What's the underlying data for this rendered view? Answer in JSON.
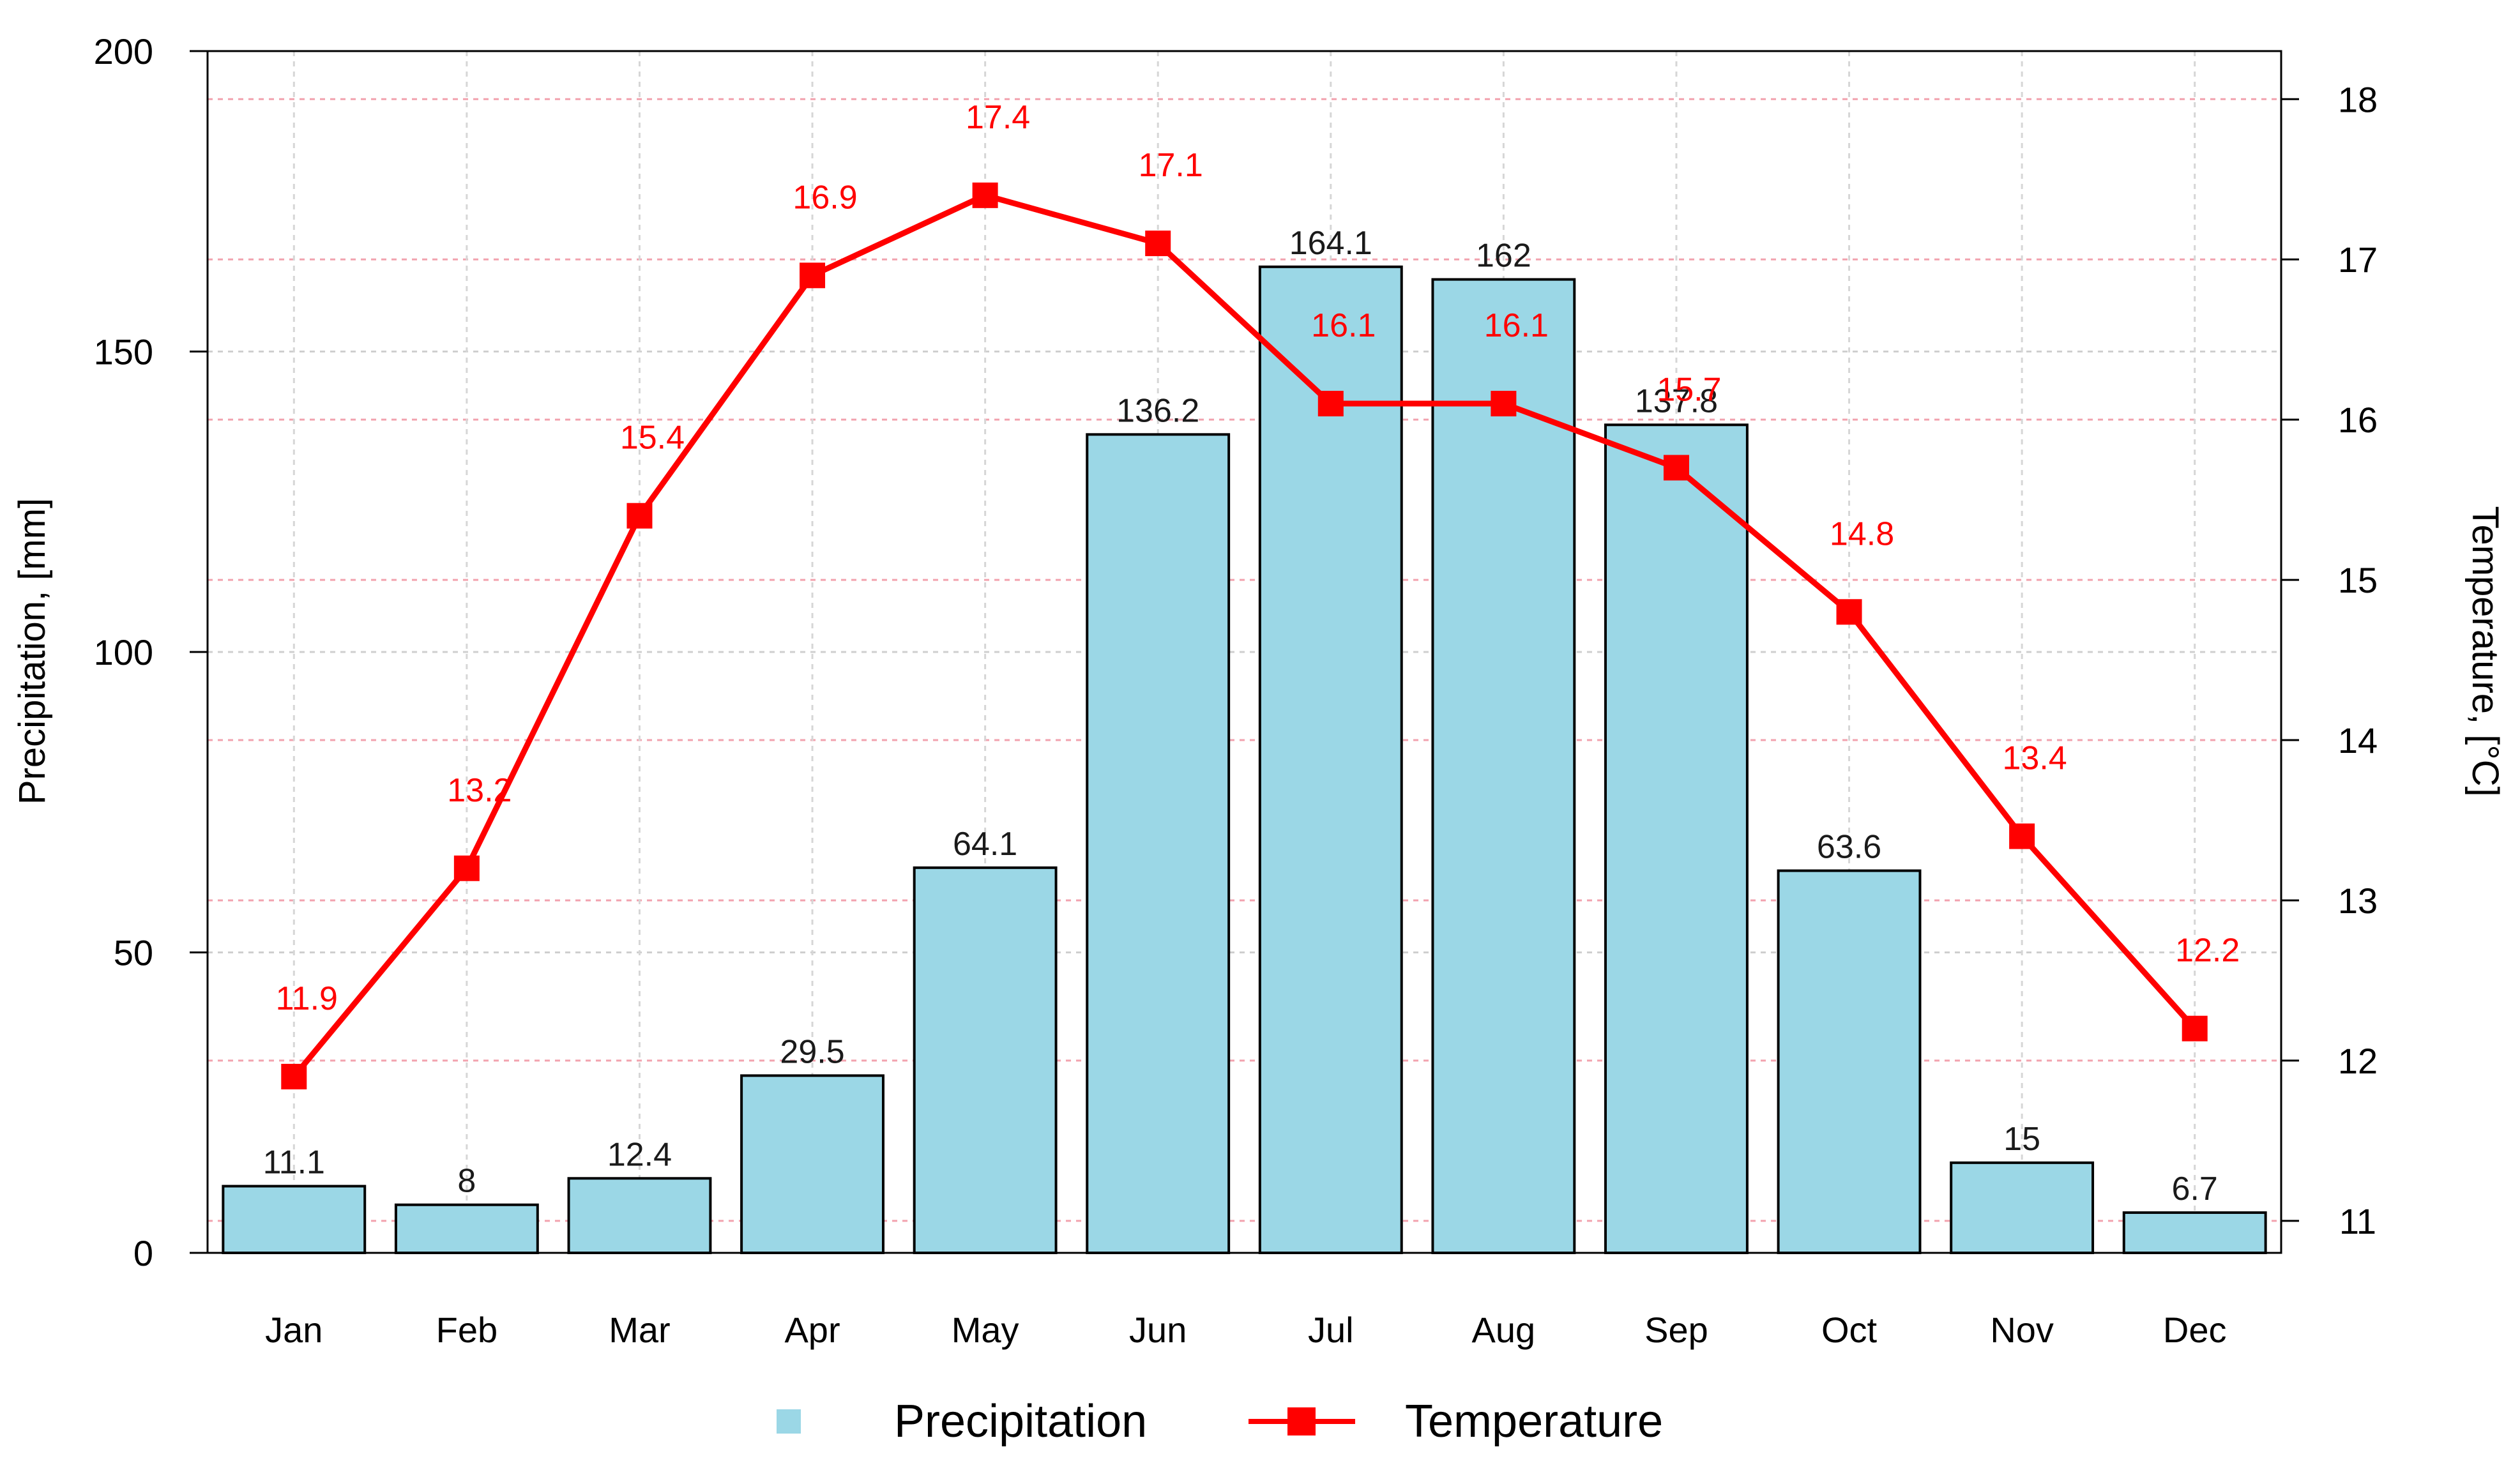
{
  "chart_data": {
    "type": "bar+line",
    "categories": [
      "Jan",
      "Feb",
      "Mar",
      "Apr",
      "May",
      "Jun",
      "Jul",
      "Aug",
      "Sep",
      "Oct",
      "Nov",
      "Dec"
    ],
    "series": [
      {
        "name": "Precipitation",
        "type": "bar",
        "axis": "left",
        "values": [
          11.1,
          8,
          12.4,
          29.5,
          64.1,
          136.2,
          164.1,
          162,
          137.8,
          63.6,
          15,
          6.7
        ],
        "labels": [
          "11.1",
          "8",
          "12.4",
          "29.5",
          "64.1",
          "136.2",
          "164.1",
          "162",
          "137.8",
          "63.6",
          "15",
          "6.7"
        ],
        "color": "#9bd7e6"
      },
      {
        "name": "Temperature",
        "type": "line",
        "axis": "right",
        "values": [
          11.9,
          13.2,
          15.4,
          16.9,
          17.4,
          17.1,
          16.1,
          16.1,
          15.7,
          14.8,
          13.4,
          12.2
        ],
        "labels": [
          "11.9",
          "13.2",
          "15.4",
          "16.9",
          "17.4",
          "17.1",
          "16.1",
          "16.1",
          "15.7",
          "14.8",
          "13.4",
          "12.2"
        ],
        "color": "#ff0000"
      }
    ],
    "ylabel_left": "Precipitation, [mm]",
    "ylabel_right": "Temperature, [°C]",
    "ylim_left": [
      0,
      200
    ],
    "ylim_right": [
      10.8,
      18.3
    ],
    "yticks_left": [
      "0",
      "50",
      "100",
      "150",
      "200"
    ],
    "yticks_right": [
      "11",
      "12",
      "13",
      "14",
      "15",
      "16",
      "17",
      "18"
    ],
    "grid": true,
    "legend_position": "bottom-center",
    "legend": [
      "Precipitation",
      "Temperature"
    ]
  }
}
